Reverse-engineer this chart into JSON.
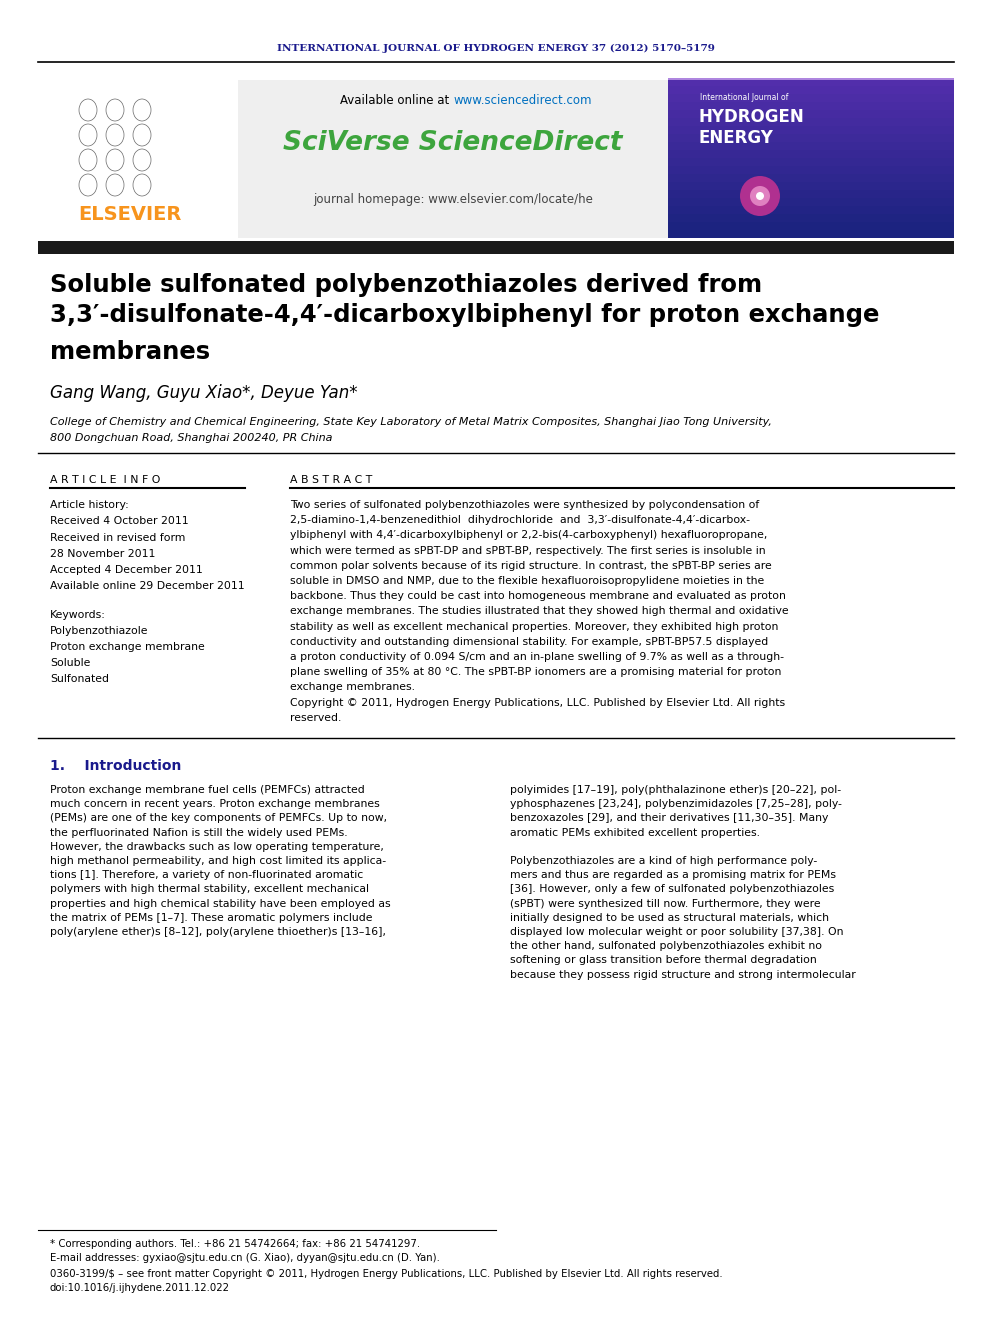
{
  "journal_header": "INTERNATIONAL JOURNAL OF HYDROGEN ENERGY 37 (2012) 5170–5179",
  "journal_header_color": "#1a1a8c",
  "available_online_url_color": "#0070c0",
  "sciverse_text": "SciVerse ScienceDirect",
  "sciverse_color": "#3da53d",
  "title_line1": "Soluble sulfonated polybenzothiazoles derived from",
  "title_line2": "3,3′-disulfonate-4,4′-dicarboxylbiphenyl for proton exchange",
  "title_line3": "membranes",
  "authors": "Gang Wang, Guyu Xiao*, Deyue Yan*",
  "affil1": "College of Chemistry and Chemical Engineering, State Key Laboratory of Metal Matrix Composites, Shanghai Jiao Tong University,",
  "affil2": "800 Dongchuan Road, Shanghai 200240, PR China",
  "article_info_label": "A R T I C L E  I N F O",
  "abstract_label": "A B S T R A C T",
  "article_history_label": "Article history:",
  "received_text": "Received 4 October 2011",
  "revised1": "Received in revised form",
  "revised2": "28 November 2011",
  "accepted_text": "Accepted 4 December 2011",
  "available_text": "Available online 29 December 2011",
  "keywords_label": "Keywords:",
  "keyword1": "Polybenzothiazole",
  "keyword2": "Proton exchange membrane",
  "keyword3": "Soluble",
  "keyword4": "Sulfonated",
  "abstract_lines": [
    "Two series of sulfonated polybenzothiazoles were synthesized by polycondensation of",
    "2,5-diamino-1,4-benzenedithiol  dihydrochloride  and  3,3′-disulfonate-4,4′-dicarbox-",
    "ylbiphenyl with 4,4′-dicarboxylbiphenyl or 2,2-bis(4-carboxyphenyl) hexafluoropropane,",
    "which were termed as sPBT-DP and sPBT-BP, respectively. The first series is insoluble in",
    "common polar solvents because of its rigid structure. In contrast, the sPBT-BP series are",
    "soluble in DMSO and NMP, due to the flexible hexafluoroisopropylidene moieties in the",
    "backbone. Thus they could be cast into homogeneous membrane and evaluated as proton",
    "exchange membranes. The studies illustrated that they showed high thermal and oxidative",
    "stability as well as excellent mechanical properties. Moreover, they exhibited high proton",
    "conductivity and outstanding dimensional stability. For example, sPBT-BP57.5 displayed",
    "a proton conductivity of 0.094 S/cm and an in-plane swelling of 9.7% as well as a through-",
    "plane swelling of 35% at 80 °C. The sPBT-BP ionomers are a promising material for proton",
    "exchange membranes.",
    "Copyright © 2011, Hydrogen Energy Publications, LLC. Published by Elsevier Ltd. All rights",
    "reserved."
  ],
  "section1_header": "1.    Introduction",
  "intro_col1": [
    "Proton exchange membrane fuel cells (PEMFCs) attracted",
    "much concern in recent years. Proton exchange membranes",
    "(PEMs) are one of the key components of PEMFCs. Up to now,",
    "the perfluorinated Nafion is still the widely used PEMs.",
    "However, the drawbacks such as low operating temperature,",
    "high methanol permeability, and high cost limited its applica-",
    "tions [1]. Therefore, a variety of non-fluorinated aromatic",
    "polymers with high thermal stability, excellent mechanical",
    "properties and high chemical stability have been employed as",
    "the matrix of PEMs [1–7]. These aromatic polymers include",
    "poly(arylene ether)s [8–12], poly(arylene thioether)s [13–16],"
  ],
  "intro_col2": [
    "polyimides [17–19], poly(phthalazinone ether)s [20–22], pol-",
    "yphosphazenes [23,24], polybenzimidazoles [7,25–28], poly-",
    "benzoxazoles [29], and their derivatives [11,30–35]. Many",
    "aromatic PEMs exhibited excellent properties.",
    "",
    "Polybenzothiazoles are a kind of high performance poly-",
    "mers and thus are regarded as a promising matrix for PEMs",
    "[36]. However, only a few of sulfonated polybenzothiazoles",
    "(sPBT) were synthesized till now. Furthermore, they were",
    "initially designed to be used as structural materials, which",
    "displayed low molecular weight or poor solubility [37,38]. On",
    "the other hand, sulfonated polybenzothiazoles exhibit no",
    "softening or glass transition before thermal degradation",
    "because they possess rigid structure and strong intermolecular"
  ],
  "footnote1": "* Corresponding authors. Tel.: +86 21 54742664; fax: +86 21 54741297.",
  "footnote2": "E-mail addresses: gyxiao@sjtu.edu.cn (G. Xiao), dyyan@sjtu.edu.cn (D. Yan).",
  "footnote3": "0360-3199/$ – see front matter Copyright © 2011, Hydrogen Energy Publications, LLC. Published by Elsevier Ltd. All rights reserved.",
  "footnote4": "doi:10.1016/j.ijhydene.2011.12.022",
  "bg_color": "#ffffff",
  "dark_bar_color": "#1a1a1a",
  "elsevier_color": "#f7941d",
  "navy_color": "#1a1a8c"
}
